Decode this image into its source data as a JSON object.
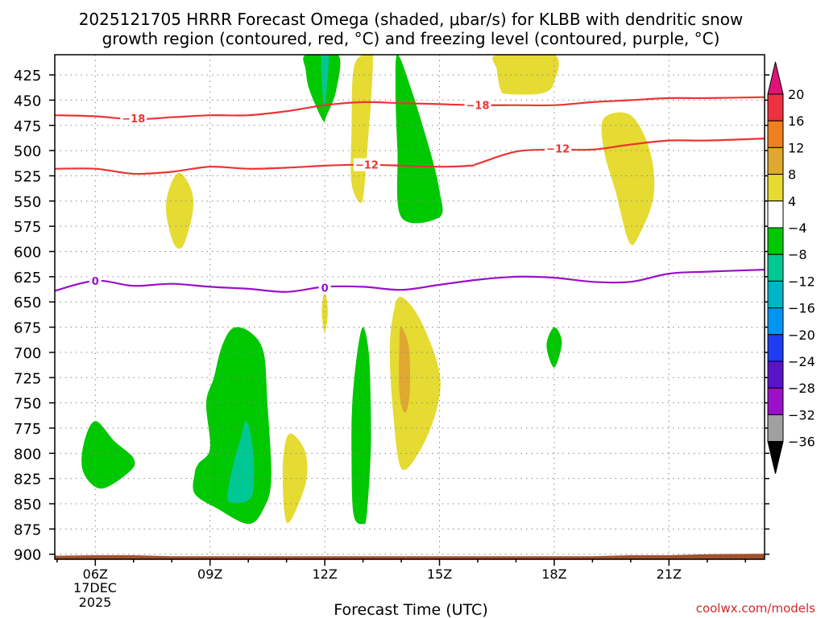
{
  "chart_data": {
    "type": "time-height contour",
    "title_line1": "2025121705 HRRR Forecast Omega (shaded, μbar/s) for KLBB with dendritic snow",
    "title_line2": "growth region (contoured, red, °C) and freezing level (contoured, purple, °C)",
    "xlabel": "Forecast Time (UTC)",
    "date_label_1": "17DEC",
    "date_label_2": "2025",
    "watermark": "coolwx.com/models",
    "x_range_hours": [
      4.94,
      23.5
    ],
    "y_range_hpa": [
      905,
      405
    ],
    "x_ticks": [
      {
        "hour": 6,
        "label": "06Z"
      },
      {
        "hour": 9,
        "label": "09Z"
      },
      {
        "hour": 12,
        "label": "12Z"
      },
      {
        "hour": 15,
        "label": "15Z"
      },
      {
        "hour": 18,
        "label": "18Z"
      },
      {
        "hour": 21,
        "label": "21Z"
      }
    ],
    "y_ticks": [
      425,
      450,
      475,
      500,
      525,
      550,
      575,
      600,
      625,
      650,
      675,
      700,
      725,
      750,
      775,
      800,
      825,
      850,
      875,
      900
    ],
    "colorbar": {
      "levels": [
        "20",
        "16",
        "12",
        "8",
        "4",
        "−4",
        "−8",
        "−12",
        "−16",
        "−20",
        "−24",
        "−28",
        "−32",
        "−36"
      ],
      "colors": [
        "#ee3040",
        "#ee8020",
        "#e0a830",
        "#e5db32",
        "#ffffff",
        "#00c800",
        "#00c894",
        "#00b4c8",
        "#0096f0",
        "#1e3cf0",
        "#5a14c8",
        "#9b10c8",
        "#a0a0a0"
      ],
      "top_color": "#e0137a",
      "bottom_color": "#000000"
    },
    "contour_lines": [
      {
        "name": "-18 C isotherm",
        "label": "−18",
        "color": "#ee3333",
        "points": [
          [
            4.94,
            465
          ],
          [
            6,
            466
          ],
          [
            7,
            469
          ],
          [
            8,
            467
          ],
          [
            9,
            465
          ],
          [
            10,
            465
          ],
          [
            11,
            461
          ],
          [
            12,
            455
          ],
          [
            13,
            452
          ],
          [
            14,
            453
          ],
          [
            15,
            454
          ],
          [
            16,
            455
          ],
          [
            17,
            455
          ],
          [
            18,
            455
          ],
          [
            19,
            452
          ],
          [
            20,
            450
          ],
          [
            21,
            448
          ],
          [
            22,
            448
          ],
          [
            23.5,
            447
          ]
        ],
        "label_at": [
          [
            7.0,
            468
          ],
          [
            16.0,
            455
          ]
        ]
      },
      {
        "name": "-12 C isotherm",
        "label": "−12",
        "color": "#ee3333",
        "points": [
          [
            4.94,
            518
          ],
          [
            6,
            518
          ],
          [
            7,
            523
          ],
          [
            8,
            521
          ],
          [
            9,
            516
          ],
          [
            10,
            518
          ],
          [
            11,
            517
          ],
          [
            12,
            515
          ],
          [
            13,
            514
          ],
          [
            14,
            515
          ],
          [
            15,
            516
          ],
          [
            15.8,
            515
          ],
          [
            16,
            513
          ],
          [
            17,
            501
          ],
          [
            18,
            499
          ],
          [
            19,
            499
          ],
          [
            20,
            494
          ],
          [
            21,
            490
          ],
          [
            22,
            490
          ],
          [
            23.5,
            488
          ]
        ],
        "label_at": [
          [
            13.1,
            514
          ],
          [
            18.1,
            498
          ]
        ]
      },
      {
        "name": "0 C freezing level",
        "label": "0",
        "color": "#9b10c8",
        "points": [
          [
            4.94,
            639
          ],
          [
            6,
            629
          ],
          [
            7,
            634
          ],
          [
            8,
            632
          ],
          [
            9,
            635
          ],
          [
            10,
            637
          ],
          [
            11,
            640
          ],
          [
            12,
            635
          ],
          [
            13,
            635
          ],
          [
            14,
            638
          ],
          [
            15,
            633
          ],
          [
            16,
            628
          ],
          [
            17,
            625
          ],
          [
            18,
            626
          ],
          [
            19,
            630
          ],
          [
            20,
            630
          ],
          [
            21,
            622
          ],
          [
            22,
            620
          ],
          [
            23.5,
            618
          ]
        ],
        "label_at": [
          [
            6.0,
            629
          ],
          [
            12.0,
            636
          ]
        ]
      }
    ],
    "shaded_regions": [
      {
        "level": "4 to 8",
        "color": "#e5db32",
        "points": [
          [
            13.0,
            405
          ],
          [
            13.25,
            405
          ],
          [
            13.2,
            455
          ],
          [
            13.15,
            480
          ],
          [
            13.05,
            530
          ],
          [
            12.95,
            552
          ],
          [
            12.7,
            532
          ],
          [
            12.7,
            480
          ],
          [
            12.75,
            420
          ]
        ]
      },
      {
        "level": "4 to 8",
        "color": "#e5db32",
        "points": [
          [
            16.5,
            405
          ],
          [
            18.0,
            405
          ],
          [
            18.0,
            432
          ],
          [
            17.7,
            443
          ],
          [
            16.8,
            444
          ],
          [
            16.6,
            440
          ],
          [
            16.5,
            420
          ]
        ]
      },
      {
        "level": "4 to 8",
        "color": "#e5db32",
        "points": [
          [
            19.3,
            468
          ],
          [
            20.0,
            465
          ],
          [
            20.5,
            500
          ],
          [
            20.6,
            545
          ],
          [
            20.2,
            585
          ],
          [
            19.95,
            590
          ],
          [
            19.6,
            540
          ],
          [
            19.3,
            500
          ]
        ]
      },
      {
        "level": "4 to 8",
        "color": "#e5db32",
        "points": [
          [
            8.2,
            522
          ],
          [
            8.5,
            538
          ],
          [
            8.55,
            560
          ],
          [
            8.3,
            594
          ],
          [
            8.05,
            592
          ],
          [
            7.85,
            560
          ],
          [
            7.95,
            536
          ]
        ]
      },
      {
        "level": "4 to 8",
        "color": "#e5db32",
        "points": [
          [
            14.0,
            645
          ],
          [
            14.5,
            668
          ],
          [
            15.0,
            720
          ],
          [
            14.9,
            760
          ],
          [
            14.45,
            800
          ],
          [
            14.0,
            815
          ],
          [
            13.8,
            765
          ],
          [
            13.7,
            700
          ],
          [
            13.8,
            660
          ]
        ]
      },
      {
        "level": "4 to 8",
        "color": "#e5db32",
        "points": [
          [
            11.2,
            782
          ],
          [
            11.5,
            800
          ],
          [
            11.5,
            830
          ],
          [
            11.1,
            867
          ],
          [
            10.95,
            860
          ],
          [
            10.9,
            815
          ],
          [
            11.0,
            785
          ]
        ]
      },
      {
        "level": "4 to 8",
        "color": "#e5db32",
        "points": [
          [
            12.0,
            638
          ],
          [
            12.08,
            660
          ],
          [
            12.0,
            680
          ],
          [
            11.92,
            660
          ]
        ]
      },
      {
        "level": "8 to 12",
        "color": "#e0a830",
        "points": [
          [
            14.0,
            675
          ],
          [
            14.2,
            695
          ],
          [
            14.22,
            740
          ],
          [
            14.1,
            760
          ],
          [
            13.95,
            740
          ],
          [
            13.95,
            690
          ]
        ]
      },
      {
        "level": "-8 to -4",
        "color": "#00c800",
        "points": [
          [
            11.5,
            405
          ],
          [
            12.35,
            405
          ],
          [
            12.3,
            440
          ],
          [
            12.05,
            465
          ],
          [
            11.95,
            470
          ],
          [
            11.6,
            440
          ],
          [
            11.5,
            420
          ]
        ]
      },
      {
        "level": "-8 to -4",
        "color": "#00c800",
        "points": [
          [
            13.9,
            405
          ],
          [
            14.25,
            438
          ],
          [
            14.75,
            500
          ],
          [
            15.0,
            540
          ],
          [
            15.0,
            566
          ],
          [
            14.0,
            566
          ],
          [
            13.9,
            500
          ],
          [
            13.85,
            440
          ]
        ]
      },
      {
        "level": "-8 to -4",
        "color": "#00c800",
        "points": [
          [
            6.0,
            768
          ],
          [
            6.5,
            788
          ],
          [
            7.0,
            805
          ],
          [
            6.9,
            818
          ],
          [
            6.15,
            835
          ],
          [
            5.68,
            818
          ],
          [
            5.7,
            790
          ]
        ]
      },
      {
        "level": "-8 to -4",
        "color": "#00c800",
        "points": [
          [
            9.6,
            676
          ],
          [
            10.05,
            680
          ],
          [
            10.4,
            700
          ],
          [
            10.5,
            750
          ],
          [
            10.6,
            825
          ],
          [
            10.4,
            855
          ],
          [
            10.0,
            870
          ],
          [
            9.2,
            855
          ],
          [
            8.6,
            840
          ],
          [
            8.6,
            820
          ],
          [
            8.7,
            810
          ],
          [
            9.0,
            795
          ],
          [
            8.9,
            750
          ],
          [
            9.1,
            725
          ],
          [
            9.3,
            695
          ]
        ]
      },
      {
        "level": "-8 to -4",
        "color": "#00c800",
        "points": [
          [
            13.0,
            675
          ],
          [
            13.15,
            700
          ],
          [
            13.2,
            750
          ],
          [
            13.2,
            800
          ],
          [
            13.1,
            860
          ],
          [
            13.0,
            870
          ],
          [
            12.75,
            860
          ],
          [
            12.7,
            800
          ],
          [
            12.72,
            750
          ],
          [
            12.85,
            700
          ]
        ]
      },
      {
        "level": "-8 to -4",
        "color": "#00c800",
        "points": [
          [
            18.0,
            675
          ],
          [
            18.2,
            690
          ],
          [
            18.0,
            715
          ],
          [
            17.8,
            693
          ]
        ]
      },
      {
        "level": "-12 to -8",
        "color": "#00c894",
        "points": [
          [
            11.92,
            405
          ],
          [
            12.1,
            405
          ],
          [
            12.05,
            440
          ],
          [
            11.98,
            455
          ],
          [
            11.92,
            430
          ]
        ]
      },
      {
        "level": "-12 to -8",
        "color": "#00c894",
        "points": [
          [
            9.95,
            768
          ],
          [
            10.1,
            790
          ],
          [
            10.15,
            820
          ],
          [
            10.05,
            845
          ],
          [
            9.5,
            848
          ],
          [
            9.5,
            830
          ],
          [
            9.65,
            805
          ],
          [
            9.8,
            785
          ]
        ]
      }
    ],
    "ground_polygon": [
      [
        4.94,
        901.5
      ],
      [
        6.0,
        901
      ],
      [
        7.0,
        901
      ],
      [
        8.0,
        902
      ],
      [
        9.0,
        902
      ],
      [
        10.0,
        902
      ],
      [
        11.0,
        902
      ],
      [
        12.0,
        902
      ],
      [
        13.0,
        902
      ],
      [
        14.0,
        902
      ],
      [
        15.0,
        902
      ],
      [
        16.0,
        902
      ],
      [
        17.0,
        902
      ],
      [
        18.0,
        902
      ],
      [
        19.0,
        902
      ],
      [
        20.0,
        901
      ],
      [
        21.0,
        901
      ],
      [
        22.0,
        900
      ],
      [
        23.5,
        899.5
      ],
      [
        23.5,
        905
      ],
      [
        4.94,
        905
      ]
    ],
    "ground_color": "#a0522d"
  }
}
